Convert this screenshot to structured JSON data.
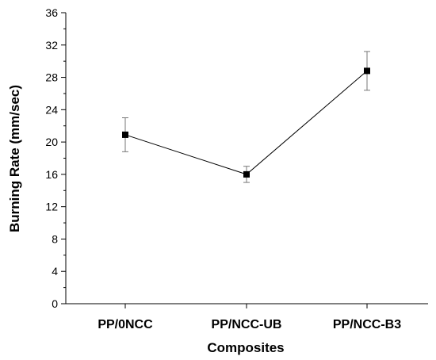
{
  "chart_data": {
    "type": "line",
    "title": "",
    "xlabel": "Composites",
    "ylabel": "Burning Rate (mm/sec)",
    "categories": [
      "PP/0NCC",
      "PP/NCC-UB",
      "PP/NCC-B3"
    ],
    "series": [
      {
        "values": [
          20.9,
          16.0,
          28.8
        ],
        "error": [
          2.1,
          1.0,
          2.4
        ],
        "marker": "square",
        "color": "#000000"
      }
    ],
    "ylim": [
      0,
      36
    ],
    "yticks": [
      0,
      4,
      8,
      12,
      16,
      20,
      24,
      28,
      32,
      36
    ],
    "grid": false,
    "legend": "none"
  }
}
